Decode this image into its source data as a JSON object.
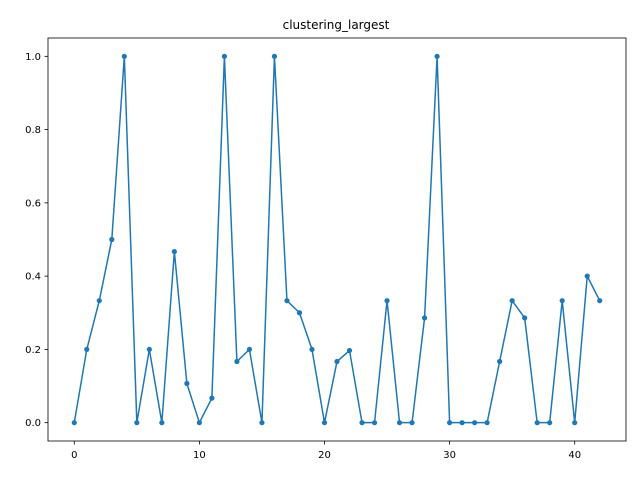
{
  "chart_data": {
    "type": "line",
    "title": "clustering_largest",
    "xlabel": "",
    "ylabel": "",
    "xlim": [
      -2.1,
      44.1
    ],
    "ylim": [
      -0.05,
      1.05
    ],
    "xticks": [
      0,
      10,
      20,
      30,
      40
    ],
    "yticks": [
      0.0,
      0.2,
      0.4,
      0.6,
      0.8,
      1.0
    ],
    "xtick_labels": [
      "0",
      "10",
      "20",
      "30",
      "40"
    ],
    "ytick_labels": [
      "0.0",
      "0.2",
      "0.4",
      "0.6",
      "0.8",
      "1.0"
    ],
    "grid": false,
    "series": [
      {
        "color": "#1f77b4",
        "marker": "circle",
        "x": [
          0,
          1,
          2,
          3,
          4,
          5,
          6,
          7,
          8,
          9,
          10,
          11,
          12,
          13,
          14,
          15,
          16,
          17,
          18,
          19,
          20,
          21,
          22,
          23,
          24,
          25,
          26,
          27,
          28,
          29,
          30,
          31,
          32,
          33,
          34,
          35,
          36,
          37,
          38,
          39,
          40,
          41,
          42
        ],
        "values": [
          0.0,
          0.2,
          0.333,
          0.5,
          1.0,
          0.0,
          0.2,
          0.0,
          0.467,
          0.107,
          0.0,
          0.067,
          1.0,
          0.167,
          0.2,
          0.0,
          1.0,
          0.333,
          0.3,
          0.2,
          0.0,
          0.167,
          0.197,
          0.0,
          0.0,
          0.333,
          0.0,
          0.0,
          0.286,
          1.0,
          0.0,
          0.0,
          0.0,
          0.0,
          0.167,
          0.333,
          0.286,
          0.0,
          0.0,
          0.333,
          0.0,
          0.4,
          0.333
        ]
      }
    ]
  }
}
